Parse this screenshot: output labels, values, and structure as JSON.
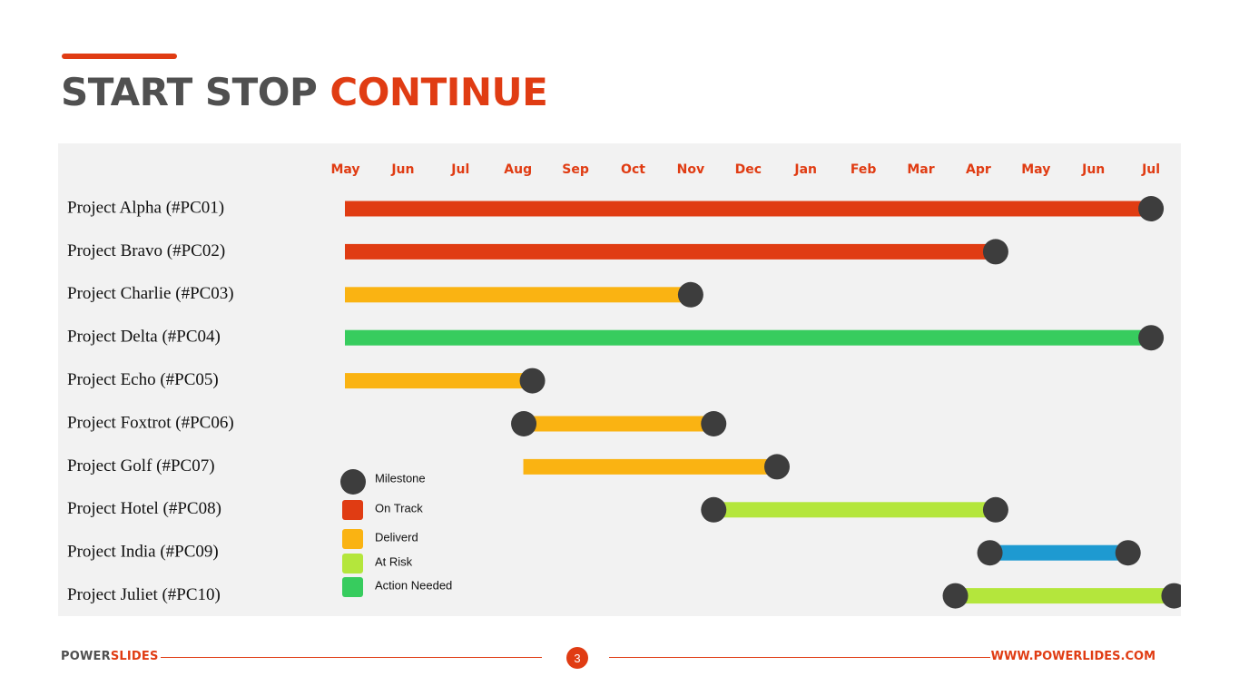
{
  "title": {
    "part1": "START STOP",
    "part2": "CONTINUE"
  },
  "colors": {
    "accent": "#e03c13",
    "title_gray": "#505050",
    "milestone": "#3d3d3d",
    "on_track": "#e03c13",
    "delivered": "#fab312",
    "at_risk": "#b4e63c",
    "action_needed": "#37cc5e",
    "other": "#1e9ad1"
  },
  "chart_data": {
    "type": "gantt",
    "timeline": [
      "May",
      "Jun",
      "Jul",
      "Aug",
      "Sep",
      "Oct",
      "Nov",
      "Dec",
      "Jan",
      "Feb",
      "Mar",
      "Apr",
      "May",
      "Jun",
      "Jul"
    ],
    "tasks": [
      {
        "label": "Project Alpha (#PC01)",
        "start": 0,
        "end": 14.0,
        "status": "on_track",
        "milestones": [
          14.0
        ]
      },
      {
        "label": "Project Bravo (#PC02)",
        "start": 0,
        "end": 11.3,
        "status": "on_track",
        "milestones": [
          11.3
        ]
      },
      {
        "label": "Project Charlie (#PC03)",
        "start": 0,
        "end": 6.0,
        "status": "delivered",
        "milestones": [
          6.0
        ]
      },
      {
        "label": "Project Delta (#PC04)",
        "start": 0,
        "end": 14.0,
        "status": "action_needed",
        "milestones": [
          14.0
        ]
      },
      {
        "label": "Project Echo (#PC05)",
        "start": 0,
        "end": 3.25,
        "status": "delivered",
        "milestones": [
          3.25
        ]
      },
      {
        "label": "Project Foxtrot (#PC06)",
        "start": 3.1,
        "end": 6.4,
        "status": "delivered",
        "milestones": [
          3.1,
          6.4
        ]
      },
      {
        "label": "Project Golf (#PC07)",
        "start": 3.1,
        "end": 7.5,
        "status": "delivered",
        "milestones": [
          7.5
        ]
      },
      {
        "label": "Project Hotel (#PC08)",
        "start": 6.4,
        "end": 11.3,
        "status": "at_risk",
        "milestones": [
          6.4,
          11.3
        ]
      },
      {
        "label": "Project India (#PC09)",
        "start": 11.2,
        "end": 13.6,
        "status": "other",
        "milestones": [
          11.2,
          13.6
        ]
      },
      {
        "label": "Project Juliet (#PC10)",
        "start": 10.6,
        "end": 14.4,
        "status": "at_risk",
        "milestones": [
          10.6,
          14.4
        ]
      }
    ],
    "legend": [
      {
        "label": "Milestone",
        "key": "milestone",
        "shape": "circle"
      },
      {
        "label": "On Track",
        "key": "on_track",
        "shape": "square"
      },
      {
        "label": "Deliverd",
        "key": "delivered",
        "shape": "square"
      },
      {
        "label": "At Risk",
        "key": "at_risk",
        "shape": "square"
      },
      {
        "label": "Action Needed",
        "key": "action_needed",
        "shape": "square"
      }
    ]
  },
  "footer": {
    "brand_part1": "POWER",
    "brand_part2": "SLIDES",
    "page_number": "3",
    "url": "WWW.POWERLIDES.COM"
  }
}
